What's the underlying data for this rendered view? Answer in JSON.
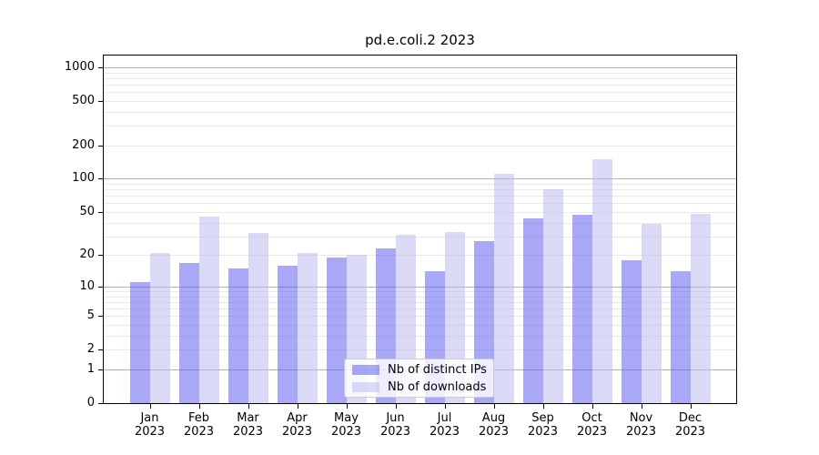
{
  "title": "pd.e.coli.2 2023",
  "chart_data": {
    "type": "bar",
    "title": "pd.e.coli.2 2023",
    "categories": [
      "Jan 2023",
      "Feb 2023",
      "Mar 2023",
      "Apr 2023",
      "May 2023",
      "Jun 2023",
      "Jul 2023",
      "Aug 2023",
      "Sep 2023",
      "Oct 2023",
      "Nov 2023",
      "Dec 2023"
    ],
    "month_labels": [
      "Jan",
      "Feb",
      "Mar",
      "Apr",
      "May",
      "Jun",
      "Jul",
      "Aug",
      "Sep",
      "Oct",
      "Nov",
      "Dec"
    ],
    "year_label": "2023",
    "series": [
      {
        "name": "Nb of distinct IPs",
        "color": "#6161f0",
        "alpha": 0.55,
        "values": [
          11,
          17,
          15,
          16,
          19,
          23,
          14,
          27,
          44,
          47,
          18,
          14
        ]
      },
      {
        "name": "Nb of downloads",
        "color": "#bcbcf0",
        "alpha": 0.55,
        "values": [
          21,
          45,
          32,
          21,
          20,
          31,
          33,
          110,
          80,
          150,
          39,
          48
        ]
      }
    ],
    "yscale": "log1p",
    "yticks": [
      0,
      1,
      2,
      5,
      10,
      20,
      50,
      100,
      200,
      500,
      1000
    ],
    "ylim": [
      0,
      1300
    ],
    "xlabel": "",
    "ylabel": "",
    "grid": true,
    "legend_position": "lower center",
    "style": {
      "background": "#ffffff",
      "axis_color": "#000000",
      "major_grid_color": "#b0b0b0",
      "minor_grid_color": "#e9e9e9",
      "legend_border_color": "#cccccc"
    }
  }
}
